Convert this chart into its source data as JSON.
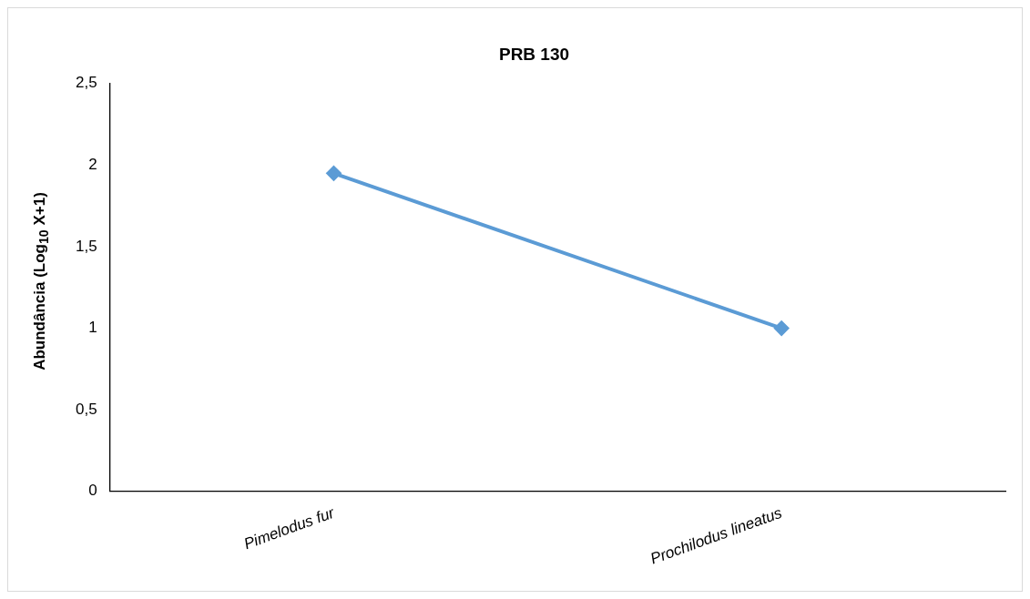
{
  "chart_data": {
    "type": "line",
    "title": "PRB 130",
    "ylabel": "Abundância (Log$_{10}$ X+1)",
    "categories": [
      "Pimelodus fur",
      "Prochilodus lineatus"
    ],
    "series": [
      {
        "color": "#5b9bd5",
        "values": [
          1.95,
          1.0
        ]
      }
    ],
    "ylim": [
      0,
      2.5
    ],
    "yticks": [
      0,
      {
        "value": 0.5,
        "label": "0,5"
      },
      1,
      {
        "value": 1.5,
        "label": "1,5"
      },
      2,
      {
        "value": 2.5,
        "label": "2,5"
      }
    ],
    "grid": false,
    "legend": false,
    "marker": "diamond",
    "line_style": "solid"
  }
}
